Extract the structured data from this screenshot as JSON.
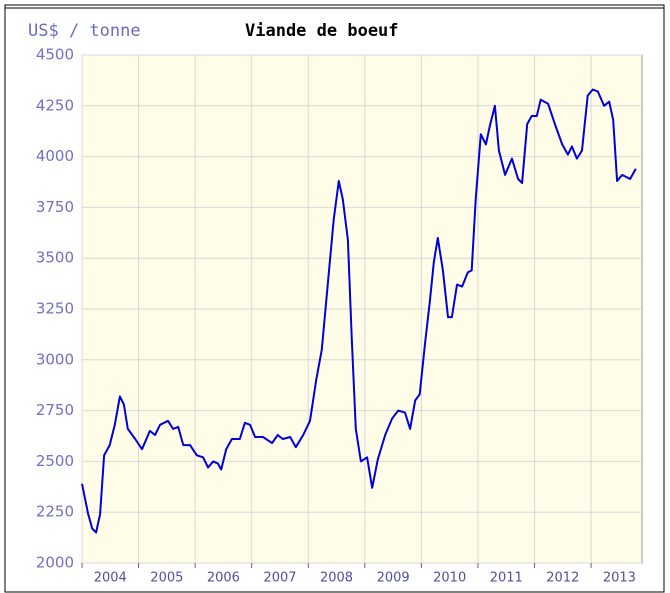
{
  "chart_data": {
    "type": "line",
    "title": "Viande de boeuf",
    "y_label": "US$ / tonne",
    "x": [
      2004.0,
      2004.11,
      2004.18,
      2004.25,
      2004.32,
      2004.39,
      2004.49,
      2004.58,
      2004.67,
      2004.74,
      2004.81,
      2004.94,
      2005.06,
      2005.2,
      2005.29,
      2005.38,
      2005.52,
      2005.61,
      2005.7,
      2005.79,
      2005.91,
      2006.03,
      2006.14,
      2006.23,
      2006.32,
      2006.4,
      2006.46,
      2006.55,
      2006.65,
      2006.79,
      2006.88,
      2006.97,
      2007.06,
      2007.2,
      2007.36,
      2007.46,
      2007.55,
      2007.68,
      2007.78,
      2007.91,
      2008.03,
      2008.14,
      2008.24,
      2008.35,
      2008.45,
      2008.54,
      2008.61,
      2008.7,
      2008.77,
      2008.84,
      2008.93,
      2009.04,
      2009.13,
      2009.23,
      2009.36,
      2009.48,
      2009.59,
      2009.71,
      2009.8,
      2009.89,
      2009.97,
      2010.06,
      2010.15,
      2010.22,
      2010.29,
      2010.38,
      2010.47,
      2010.54,
      2010.63,
      2010.72,
      2010.82,
      2010.89,
      2010.96,
      2011.05,
      2011.14,
      2011.21,
      2011.3,
      2011.37,
      2011.48,
      2011.6,
      2011.71,
      2011.78,
      2011.87,
      2011.95,
      2012.04,
      2012.11,
      2012.24,
      2012.36,
      2012.49,
      2012.59,
      2012.66,
      2012.75,
      2012.84,
      2012.94,
      2013.03,
      2013.12,
      2013.23,
      2013.32,
      2013.39,
      2013.46,
      2013.55,
      2013.69,
      2013.79
    ],
    "series": [
      {
        "name": "Viande de boeuf",
        "color": "#0000dd",
        "values": [
          2390,
          2240,
          2170,
          2150,
          2240,
          2530,
          2580,
          2680,
          2820,
          2780,
          2660,
          2610,
          2560,
          2650,
          2630,
          2680,
          2700,
          2660,
          2670,
          2580,
          2580,
          2530,
          2520,
          2470,
          2500,
          2490,
          2460,
          2560,
          2610,
          2610,
          2690,
          2680,
          2620,
          2620,
          2590,
          2630,
          2610,
          2620,
          2570,
          2630,
          2700,
          2900,
          3050,
          3390,
          3690,
          3880,
          3790,
          3590,
          3100,
          2660,
          2500,
          2520,
          2370,
          2510,
          2630,
          2710,
          2750,
          2740,
          2660,
          2800,
          2830,
          3070,
          3290,
          3480,
          3600,
          3440,
          3210,
          3210,
          3370,
          3360,
          3430,
          3440,
          3790,
          4110,
          4060,
          4150,
          4250,
          4030,
          3910,
          3990,
          3890,
          3870,
          4160,
          4200,
          4200,
          4280,
          4260,
          4160,
          4060,
          4010,
          4050,
          3990,
          4030,
          4300,
          4330,
          4320,
          4250,
          4270,
          4180,
          3880,
          3910,
          3890,
          3940
        ]
      }
    ],
    "xlim": [
      2004,
      2013.9
    ],
    "xticks": [
      2004,
      2005,
      2006,
      2007,
      2008,
      2009,
      2010,
      2011,
      2012,
      2013
    ],
    "ylim": [
      2000,
      4500
    ],
    "yticks": [
      2000,
      2250,
      2500,
      2750,
      3000,
      3250,
      3500,
      3750,
      4000,
      4250,
      4500
    ],
    "grid": true
  }
}
